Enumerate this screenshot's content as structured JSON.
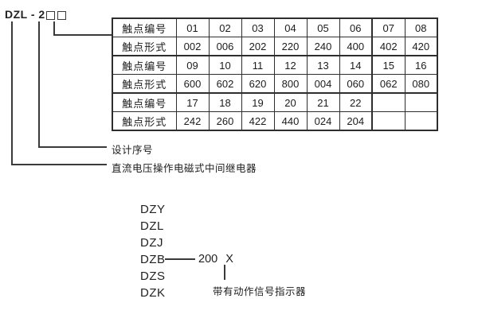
{
  "model_code": {
    "prefix": "DZL - 2",
    "digit_boxes": 2
  },
  "table": {
    "rows": [
      {
        "header": "触点编号",
        "cells": [
          "01",
          "02",
          "03",
          "04",
          "05",
          "06",
          "07",
          "08"
        ]
      },
      {
        "header": "触点形式",
        "cells": [
          "002",
          "006",
          "202",
          "220",
          "240",
          "400",
          "402",
          "420"
        ]
      },
      {
        "header": "触点编号",
        "cells": [
          "09",
          "10",
          "11",
          "12",
          "13",
          "14",
          "15",
          "16"
        ]
      },
      {
        "header": "触点形式",
        "cells": [
          "600",
          "602",
          "620",
          "800",
          "004",
          "060",
          "062",
          "080"
        ]
      },
      {
        "header": "触点编号",
        "cells": [
          "17",
          "18",
          "19",
          "20",
          "21",
          "22",
          "",
          ""
        ]
      },
      {
        "header": "触点形式",
        "cells": [
          "242",
          "260",
          "422",
          "440",
          "024",
          "204",
          "",
          ""
        ]
      }
    ]
  },
  "callouts": {
    "design_serial": "设计序号",
    "relay_type": "直流电压操作电磁式中间继电器"
  },
  "model_list": {
    "items": [
      "DZY",
      "DZL",
      "DZJ",
      "DZB",
      "DZS",
      "DZK"
    ],
    "suffix_number": "200",
    "suffix_variant": "X",
    "indicator_note": "带有动作信号指示器"
  },
  "colors": {
    "background": "#ffffff",
    "text": "#1c1c1c",
    "line": "#3a3a3a",
    "table_border": "#2e2e2e"
  }
}
